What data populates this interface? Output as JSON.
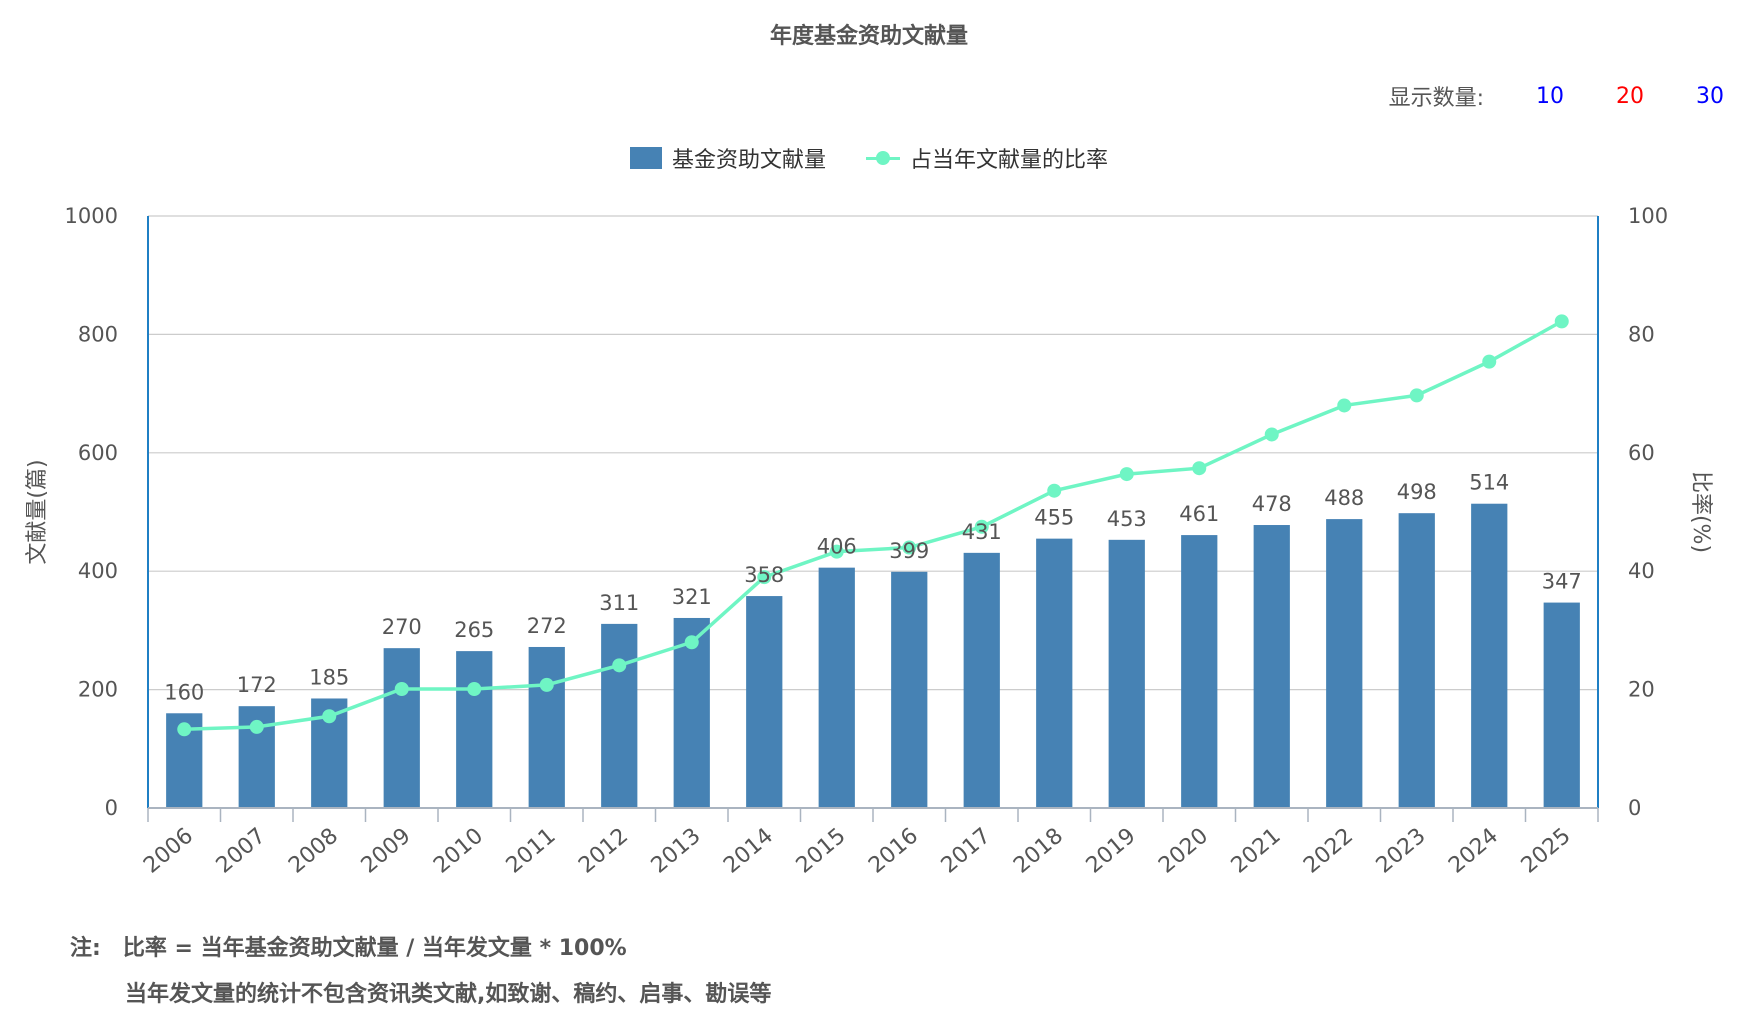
{
  "title": "年度基金资助文献量",
  "display_count": {
    "label": "显示数量:",
    "options": [
      {
        "label": "10",
        "color": "#0000ff"
      },
      {
        "label": "20",
        "color": "#ff0000"
      },
      {
        "label": "30",
        "color": "#0000ff"
      }
    ]
  },
  "notes": {
    "label": "注:",
    "line1": "比率 = 当年基金资助文献量 / 当年发文量 * 100%",
    "line2": "当年发文量的统计不包含资讯类文献,如致谢、稿约、启事、勘误等"
  },
  "colors": {
    "bar": "#4682b4",
    "line": "#6ff5c4",
    "axis": "#1f7fc4",
    "grid": "#cccccc"
  },
  "chart_data": {
    "type": "bar",
    "categories": [
      "2006",
      "2007",
      "2008",
      "2009",
      "2010",
      "2011",
      "2012",
      "2013",
      "2014",
      "2015",
      "2016",
      "2017",
      "2018",
      "2019",
      "2020",
      "2021",
      "2022",
      "2023",
      "2024",
      "2025"
    ],
    "series": [
      {
        "name": "基金资助文献量",
        "type": "bar",
        "axis": "left",
        "values": [
          160,
          172,
          185,
          270,
          265,
          272,
          311,
          321,
          358,
          406,
          399,
          431,
          455,
          453,
          461,
          478,
          488,
          498,
          514,
          347
        ]
      },
      {
        "name": "占当年文献量的比率",
        "type": "line",
        "axis": "right",
        "values": [
          13.3,
          13.7,
          15.5,
          20.1,
          20.1,
          20.8,
          24.1,
          28,
          39,
          43.3,
          44,
          47.5,
          53.6,
          56.4,
          57.4,
          63.1,
          68,
          69.7,
          75.4,
          82.2
        ]
      }
    ],
    "ylabel": "文献量(篇)",
    "ylabel_right": "比率(%)",
    "ylim": [
      0,
      1000
    ],
    "ylim_right": [
      0,
      100
    ],
    "yticks": [
      "0",
      "200",
      "400",
      "600",
      "800",
      "1000"
    ],
    "yticks_right": [
      "0",
      "20",
      "40",
      "60",
      "80",
      "100"
    ],
    "grid": true,
    "legend_position": "top-center"
  }
}
